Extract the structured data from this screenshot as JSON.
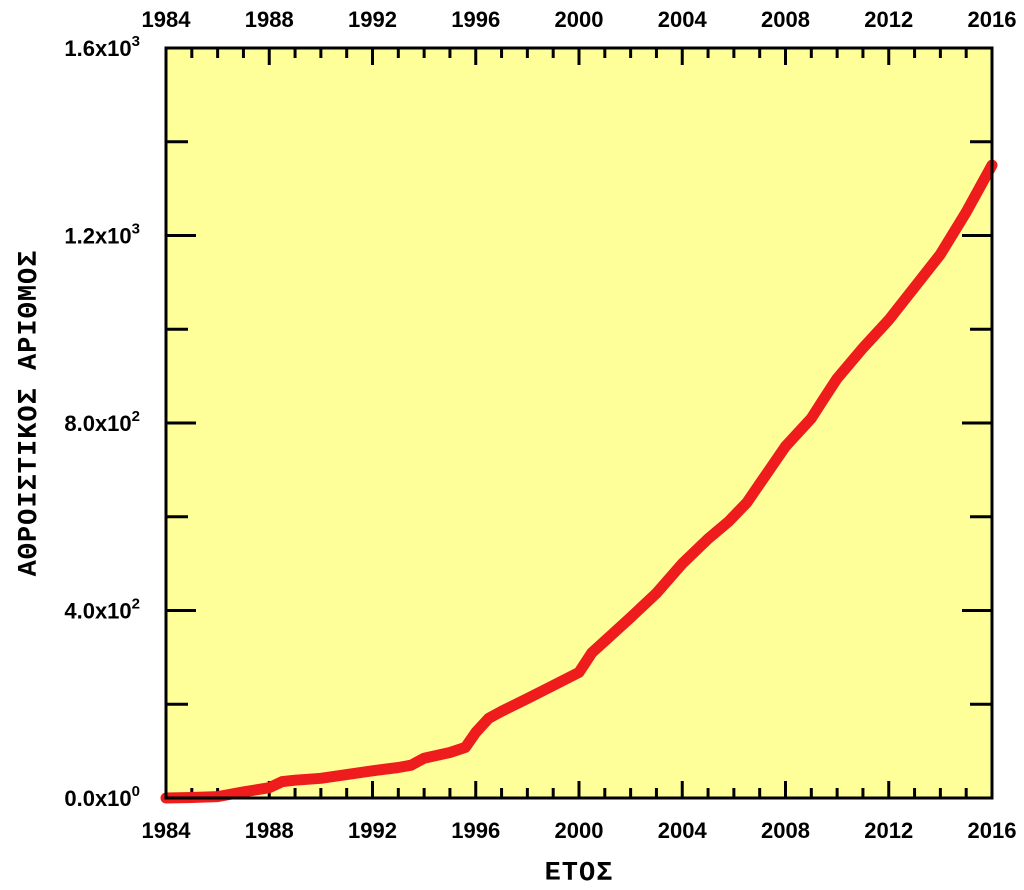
{
  "chart_data": {
    "type": "line",
    "title": "",
    "xlabel": "ΕΤΟΣ",
    "ylabel": "ΑΘΡΟΙΣΤΙΚΟΣ ΑΡΙΘΜΟΣ",
    "xlim": [
      1984,
      2016
    ],
    "ylim": [
      0,
      1600
    ],
    "grid": false,
    "legend": "none",
    "x_ticks": [
      1984,
      1988,
      1992,
      1996,
      2000,
      2004,
      2008,
      2012,
      2016
    ],
    "x_tick_labels": [
      "1984",
      "1988",
      "1992",
      "1996",
      "2000",
      "2004",
      "2008",
      "2012",
      "2016"
    ],
    "y_ticks": [
      0,
      400,
      800,
      1200,
      1600
    ],
    "y_tick_labels": [
      {
        "mantissa": "0.0x10",
        "exponent": "0"
      },
      {
        "mantissa": "4.0x10",
        "exponent": "2"
      },
      {
        "mantissa": "8.0x10",
        "exponent": "2"
      },
      {
        "mantissa": "1.2x10",
        "exponent": "3"
      },
      {
        "mantissa": "1.6x10",
        "exponent": "3"
      }
    ],
    "colors": {
      "plot_background": "#ffff99",
      "line": "#ee1c1c",
      "axis": "#000000"
    },
    "series": [
      {
        "x": [
          1984,
          1985,
          1986,
          1987,
          1988,
          1988.5,
          1989,
          1990,
          1991,
          1992,
          1993,
          1993.5,
          1994,
          1995,
          1995.6,
          1996,
          1996.5,
          1997,
          1998,
          1999,
          2000,
          2000.5,
          2001,
          2002,
          2003,
          2004,
          2005,
          2005.8,
          2006.5,
          2007,
          2008,
          2009,
          2009.5,
          2010,
          2011,
          2012,
          2013,
          2014,
          2015,
          2016
        ],
        "y": [
          0,
          1,
          3,
          13,
          22,
          35,
          38,
          42,
          50,
          58,
          65,
          70,
          85,
          97,
          108,
          140,
          170,
          185,
          212,
          240,
          268,
          310,
          335,
          385,
          437,
          500,
          553,
          590,
          630,
          670,
          750,
          810,
          853,
          895,
          960,
          1020,
          1090,
          1160,
          1250,
          1350
        ]
      }
    ]
  }
}
